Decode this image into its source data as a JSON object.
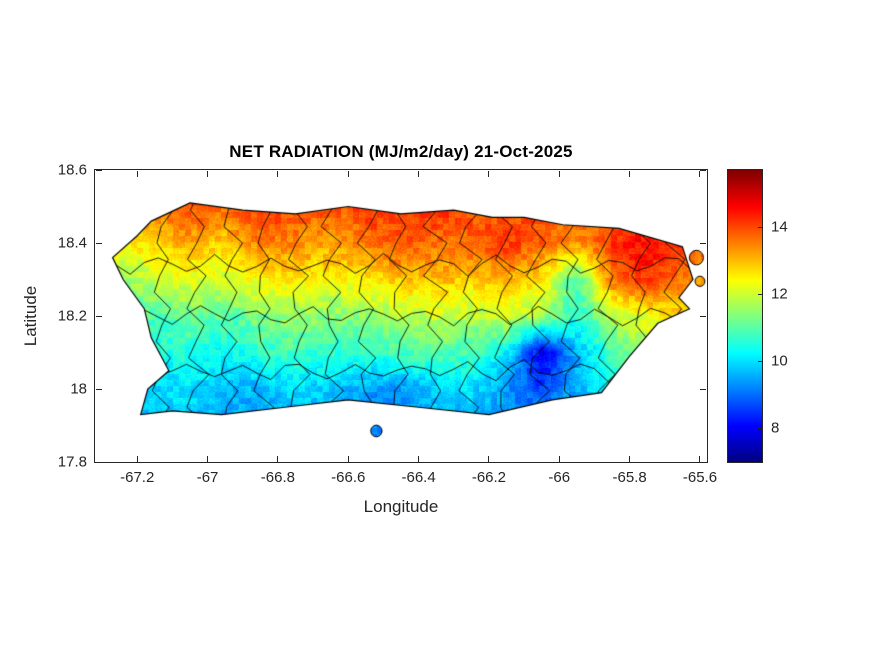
{
  "chart_data": {
    "type": "heatmap",
    "title": "NET RADIATION (MJ/m2/day) 21-Oct-2025",
    "xlabel": "Longitude",
    "ylabel": "Latitude",
    "xlim": [
      -67.32,
      -65.58
    ],
    "ylim": [
      17.8,
      18.6
    ],
    "xticks": [
      -67.2,
      -67,
      -66.8,
      -66.6,
      -66.4,
      -66.2,
      -66,
      -65.8,
      -65.6
    ],
    "xtick_labels": [
      "-67.2",
      "-67",
      "-66.8",
      "-66.6",
      "-66.4",
      "-66.2",
      "-66",
      "-65.8",
      "-65.6"
    ],
    "yticks": [
      18.6,
      18.4,
      18.2,
      18,
      17.8
    ],
    "ytick_labels": [
      "18.6",
      "18.4",
      "18.2",
      "18",
      "17.8"
    ],
    "grid_lines": "off",
    "legend": "none",
    "colorbar": {
      "position": "right",
      "colormap": "jet",
      "min": 7.0,
      "max": 15.7,
      "ticks": [
        8,
        10,
        12,
        14
      ],
      "tick_labels": [
        "8",
        "10",
        "12",
        "14"
      ]
    },
    "grid": {
      "lon": [
        -67.25,
        -67.15,
        -67.05,
        -66.95,
        -66.85,
        -66.75,
        -66.65,
        -66.55,
        -66.45,
        -66.35,
        -66.25,
        -66.15,
        -66.05,
        -65.95,
        -65.85,
        -65.75,
        -65.65,
        -65.55
      ],
      "lat": [
        18.5,
        18.4,
        18.3,
        18.2,
        18.1,
        18.0,
        17.9
      ],
      "values": [
        [
          13.0,
          13.6,
          14.0,
          13.8,
          14.2,
          14.0,
          13.8,
          14.2,
          14.0,
          14.3,
          14.0,
          13.8,
          14.0,
          13.6,
          13.8,
          14.0,
          13.4,
          13.0
        ],
        [
          12.4,
          12.8,
          13.2,
          12.8,
          13.6,
          13.4,
          13.2,
          13.6,
          14.0,
          13.6,
          13.8,
          14.2,
          13.8,
          13.4,
          14.2,
          14.6,
          14.2,
          13.6
        ],
        [
          11.6,
          11.9,
          12.2,
          12.0,
          12.5,
          12.7,
          12.4,
          12.6,
          12.9,
          13.0,
          12.8,
          13.1,
          12.6,
          10.8,
          13.6,
          14.2,
          13.6,
          13.0
        ],
        [
          10.8,
          11.0,
          11.2,
          11.0,
          11.4,
          11.6,
          11.4,
          11.5,
          11.8,
          12.0,
          11.8,
          12.0,
          11.6,
          10.6,
          11.8,
          12.4,
          12.6,
          12.4
        ],
        [
          10.2,
          10.4,
          10.5,
          10.3,
          10.6,
          10.8,
          10.6,
          10.6,
          10.9,
          11.0,
          10.8,
          10.2,
          7.8,
          9.6,
          10.8,
          11.6,
          12.0,
          12.0
        ],
        [
          9.8,
          9.9,
          10.0,
          9.8,
          9.6,
          10.0,
          9.8,
          9.5,
          9.3,
          9.8,
          10.0,
          9.4,
          8.6,
          9.6,
          10.4,
          10.9,
          11.2,
          11.2
        ],
        [
          9.6,
          9.7,
          9.8,
          9.5,
          9.3,
          9.6,
          9.5,
          9.2,
          9.1,
          9.5,
          9.7,
          9.4,
          9.6,
          10.0,
          10.4,
          10.6,
          10.8,
          10.8
        ]
      ]
    },
    "island_outline": [
      [
        -67.16,
        18.46
      ],
      [
        -67.05,
        18.51
      ],
      [
        -66.9,
        18.49
      ],
      [
        -66.75,
        18.48
      ],
      [
        -66.6,
        18.5
      ],
      [
        -66.45,
        18.48
      ],
      [
        -66.3,
        18.49
      ],
      [
        -66.19,
        18.47
      ],
      [
        -66.1,
        18.47
      ],
      [
        -65.99,
        18.45
      ],
      [
        -65.83,
        18.44
      ],
      [
        -65.65,
        18.39
      ],
      [
        -65.62,
        18.3
      ],
      [
        -65.66,
        18.25
      ],
      [
        -65.63,
        18.22
      ],
      [
        -65.72,
        18.18
      ],
      [
        -65.8,
        18.09
      ],
      [
        -65.88,
        17.99
      ],
      [
        -66.02,
        17.97
      ],
      [
        -66.2,
        17.93
      ],
      [
        -66.4,
        17.95
      ],
      [
        -66.6,
        17.97
      ],
      [
        -66.78,
        17.95
      ],
      [
        -66.96,
        17.93
      ],
      [
        -67.1,
        17.94
      ],
      [
        -67.19,
        17.93
      ],
      [
        -67.17,
        18.0
      ],
      [
        -67.11,
        18.05
      ],
      [
        -67.16,
        18.14
      ],
      [
        -67.18,
        18.22
      ],
      [
        -67.24,
        18.3
      ],
      [
        -67.27,
        18.36
      ],
      [
        -67.2,
        18.42
      ]
    ],
    "islets": [
      [
        -66.52,
        17.885,
        0.016
      ],
      [
        -65.61,
        18.36,
        0.02
      ],
      [
        -65.6,
        18.295,
        0.014
      ]
    ],
    "boundaries": "municipal"
  }
}
